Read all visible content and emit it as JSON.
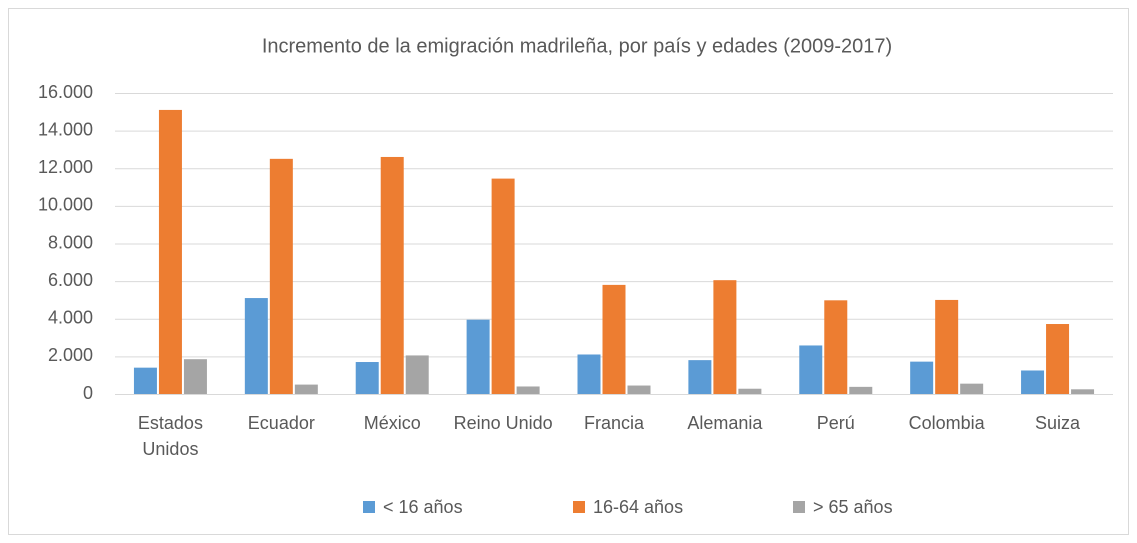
{
  "chart_data": {
    "type": "bar",
    "title": "Incremento de la emigración madrileña, por país y edades (2009-2017)",
    "categories": [
      "Estados Unidos",
      "Ecuador",
      "México",
      "Reino Unido",
      "Francia",
      "Alemania",
      "Perú",
      "Colombia",
      "Suiza"
    ],
    "series": [
      {
        "name": "< 16 años",
        "color": "#5b9bd5",
        "values": [
          1400,
          5100,
          1700,
          3950,
          2100,
          1800,
          2580,
          1720,
          1250
        ]
      },
      {
        "name": "16-64 años",
        "color": "#ed7d31",
        "values": [
          15100,
          12500,
          12600,
          11450,
          5800,
          6050,
          4980,
          5000,
          3720
        ]
      },
      {
        "name": "> 65 años",
        "color": "#a5a5a5",
        "values": [
          1850,
          500,
          2050,
          400,
          450,
          280,
          380,
          550,
          250
        ]
      }
    ],
    "ylim": [
      0,
      16000
    ],
    "yticks": [
      0,
      {
        "value": 2000,
        "label": "2.000"
      },
      {
        "value": 4000,
        "label": "4.000"
      },
      {
        "value": 6000,
        "label": "6.000"
      },
      {
        "value": 8000,
        "label": "8.000"
      },
      {
        "value": 10000,
        "label": "10.000"
      },
      {
        "value": 12000,
        "label": "12.000"
      },
      {
        "value": 14000,
        "label": "14.000"
      },
      {
        "value": 16000,
        "label": "16.000"
      }
    ],
    "grid": true,
    "legend": "bottom"
  }
}
